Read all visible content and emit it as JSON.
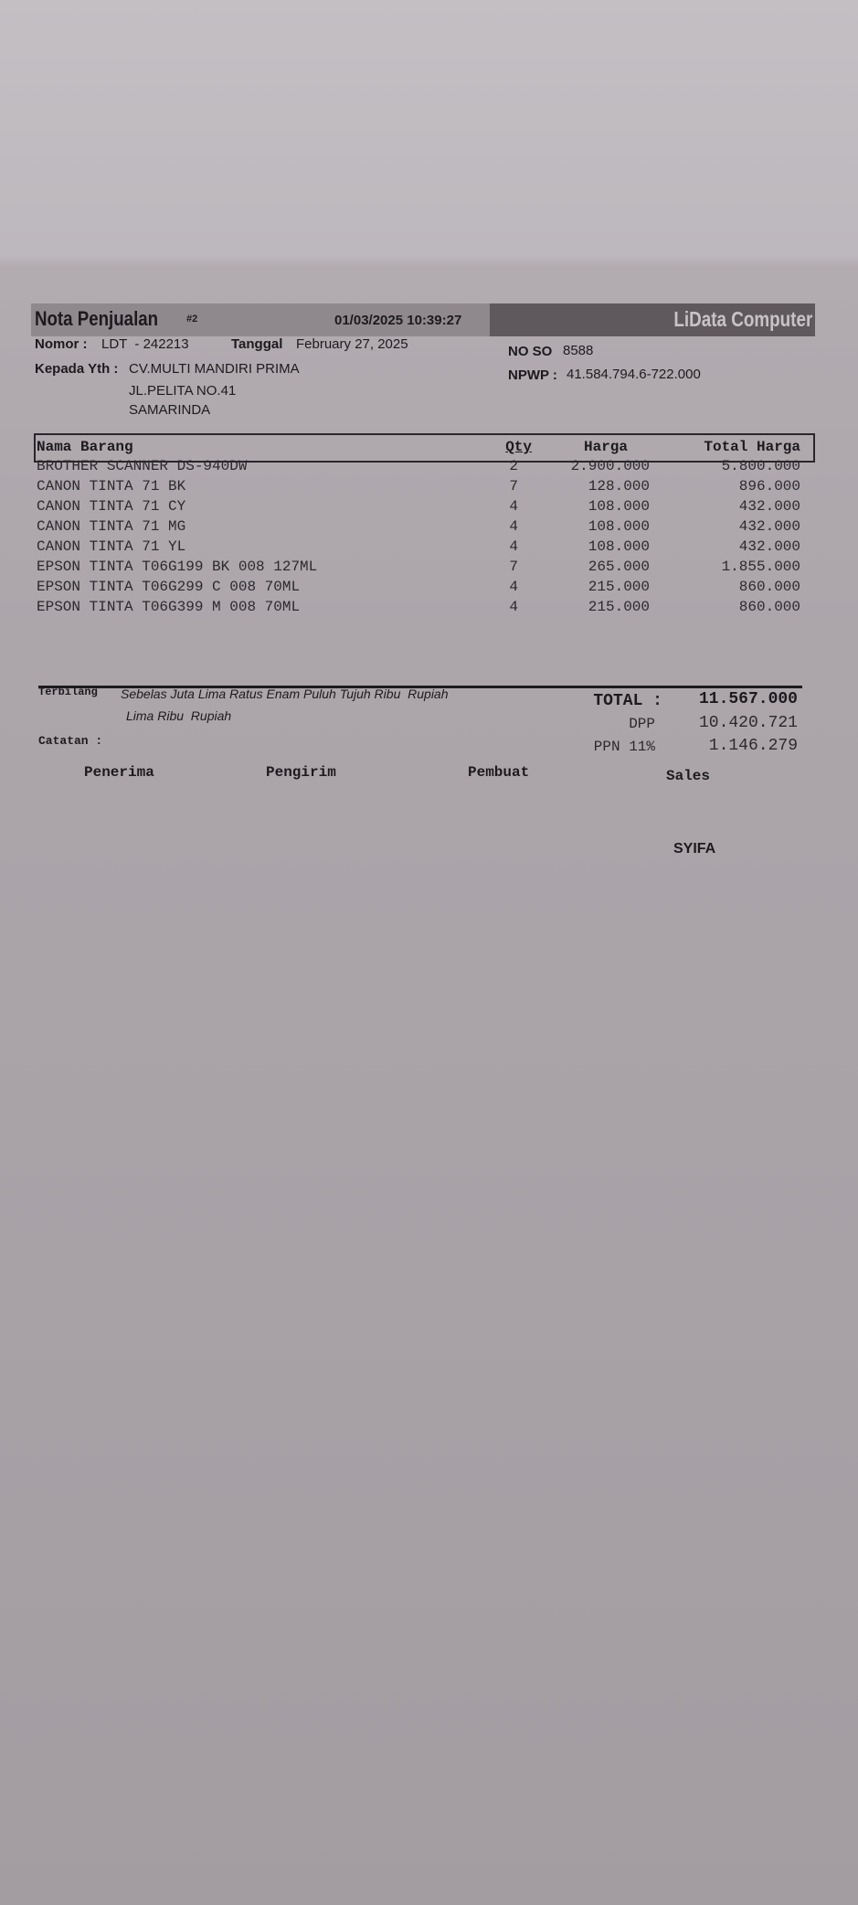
{
  "header": {
    "title": "Nota Penjualan",
    "copy_mark": "#2",
    "printed_datetime": "01/03/2025 10:39:27",
    "brand": "LiData Computer"
  },
  "info": {
    "nomor_label": "Nomor :",
    "nomor_value": "LDT  - 242213",
    "tanggal_label": "Tanggal",
    "tanggal_value": "February 27, 2025",
    "kepada_label": "Kepada Yth :",
    "customer_name": "CV.MULTI MANDIRI PRIMA",
    "customer_address": "JL.PELITA NO.41",
    "customer_city": "SAMARINDA",
    "no_so_label": "NO SO",
    "no_so_value": "8588",
    "npwp_label": "NPWP :",
    "npwp_value": "41.584.794.6-722.000"
  },
  "table": {
    "headers": {
      "name": "Nama Barang",
      "qty": "Qty",
      "price": "Harga",
      "total": "Total Harga"
    },
    "rows": [
      {
        "name": "BROTHER SCANNER DS-940DW",
        "qty": "2",
        "price": "2.900.000",
        "total": "5.800.000"
      },
      {
        "name": "CANON TINTA 71 BK",
        "qty": "7",
        "price": "128.000",
        "total": "896.000"
      },
      {
        "name": "CANON TINTA 71 CY",
        "qty": "4",
        "price": "108.000",
        "total": "432.000"
      },
      {
        "name": "CANON TINTA 71 MG",
        "qty": "4",
        "price": "108.000",
        "total": "432.000"
      },
      {
        "name": "CANON TINTA 71 YL",
        "qty": "4",
        "price": "108.000",
        "total": "432.000"
      },
      {
        "name": "EPSON TINTA T06G199 BK 008 127ML",
        "qty": "7",
        "price": "265.000",
        "total": "1.855.000"
      },
      {
        "name": "EPSON TINTA T06G299 C 008 70ML",
        "qty": "4",
        "price": "215.000",
        "total": "860.000"
      },
      {
        "name": "EPSON TINTA T06G399 M 008 70ML",
        "qty": "4",
        "price": "215.000",
        "total": "860.000"
      }
    ]
  },
  "summary": {
    "terbilang_label": "Terbilang",
    "terbilang_line1": "Sebelas Juta Lima Ratus Enam Puluh Tujuh Ribu  Rupiah",
    "terbilang_line2": "Lima Ribu  Rupiah",
    "catatan_label": "Catatan :",
    "total_label": "TOTAL :",
    "total_value": "11.567.000",
    "dpp_label": "DPP",
    "dpp_value": "10.420.721",
    "ppn_label": "PPN 11%",
    "ppn_value": "1.146.279"
  },
  "signatures": {
    "penerima": "Penerima",
    "pengirim": "Pengirim",
    "pembuat": "Pembuat",
    "sales": "Sales",
    "sales_name": "SYIFA"
  }
}
